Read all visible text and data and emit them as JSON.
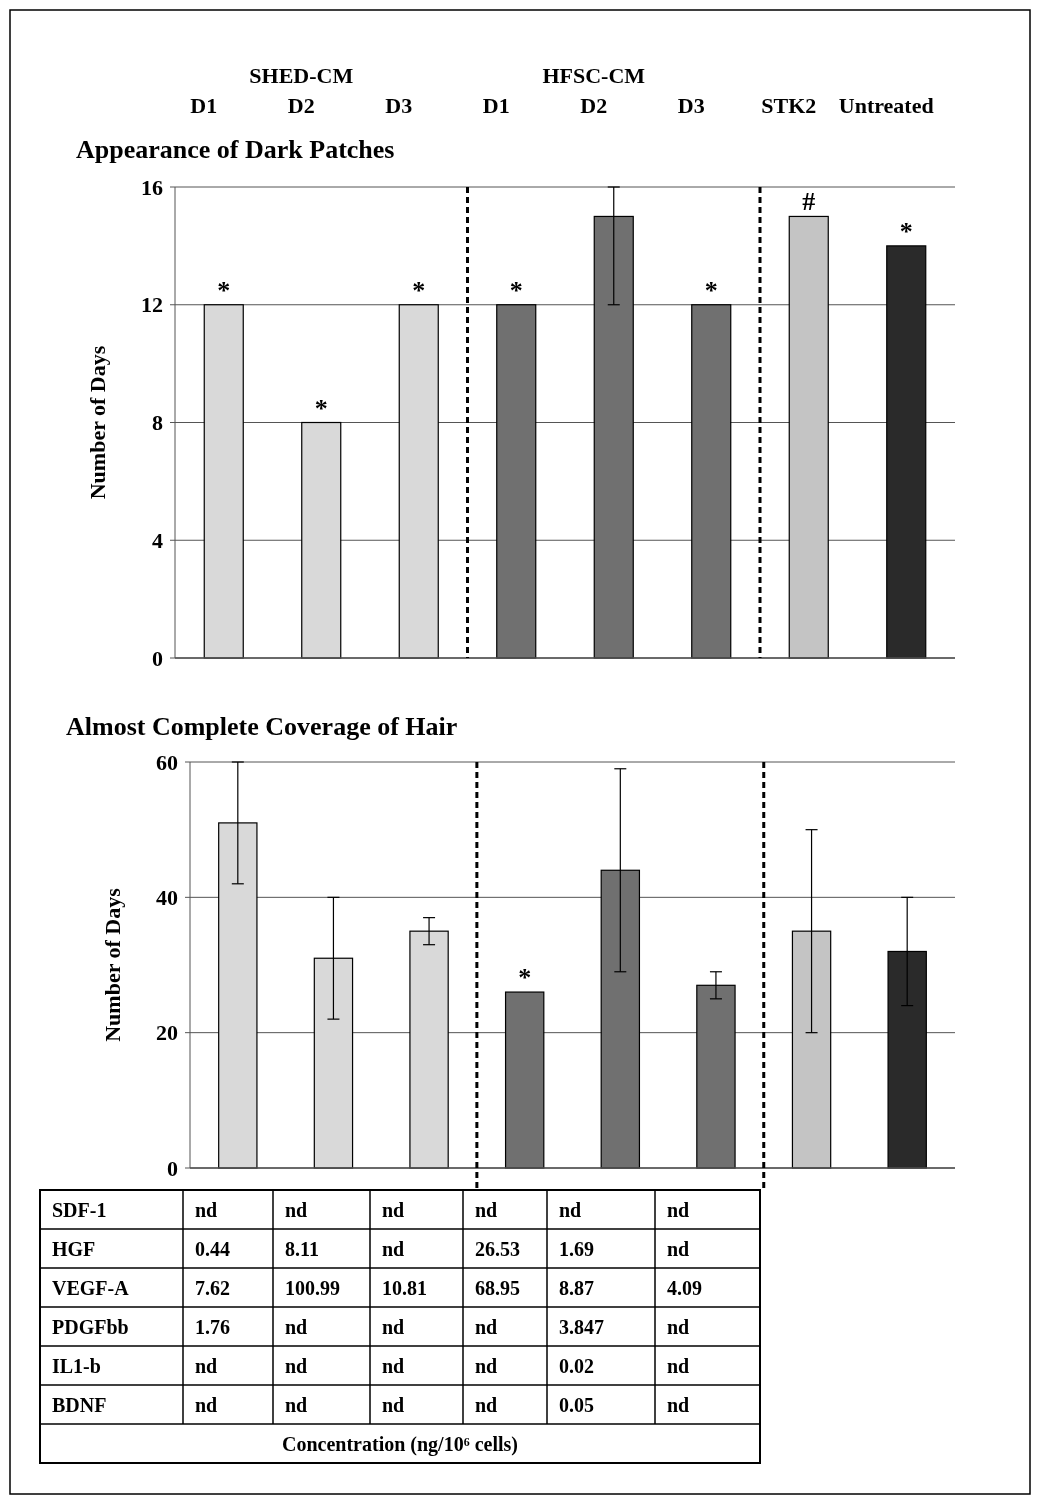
{
  "chart_data": [
    {
      "type": "bar",
      "title": "Appearance of Dark Patches",
      "ylabel": "Number of Days",
      "categories": [
        "D1",
        "D2",
        "D3",
        "D1",
        "D2",
        "D3",
        "STK2",
        "Untreated"
      ],
      "annotations": [
        "SHED-CM",
        "HFSC-CM"
      ],
      "values": [
        12,
        8,
        12,
        12,
        15,
        12,
        15,
        14
      ],
      "errors": [
        null,
        null,
        null,
        null,
        [
          12,
          16
        ],
        null,
        null,
        null
      ],
      "value_labels": [
        "*",
        "*",
        "*",
        "*",
        null,
        "*",
        "#",
        "*"
      ],
      "colors": [
        "#d9d9d9",
        "#d9d9d9",
        "#d9d9d9",
        "#707070",
        "#707070",
        "#707070",
        "#c4c4c4",
        "#2a2a2a"
      ],
      "ylim": [
        0,
        16
      ],
      "yticks": [
        0,
        4,
        8,
        12,
        16
      ],
      "grid": "y"
    },
    {
      "type": "bar",
      "title": "Almost Complete Coverage of Hair",
      "ylabel": "Number of Days",
      "categories": [
        null,
        null,
        null,
        null,
        null,
        null,
        null,
        null
      ],
      "values": [
        51,
        31,
        35,
        26,
        44,
        27,
        35,
        32
      ],
      "errors": [
        [
          42,
          60
        ],
        [
          22,
          40
        ],
        [
          33,
          37
        ],
        null,
        [
          29,
          59
        ],
        [
          25,
          29
        ],
        [
          20,
          50
        ],
        [
          24,
          40
        ]
      ],
      "value_labels": [
        null,
        null,
        null,
        "*",
        null,
        null,
        null,
        null
      ],
      "colors": [
        "#d9d9d9",
        "#d9d9d9",
        "#d9d9d9",
        "#707070",
        "#707070",
        "#707070",
        "#c4c4c4",
        "#2a2a2a"
      ],
      "ylim": [
        0,
        60
      ],
      "yticks": [
        0,
        20,
        40,
        60
      ],
      "grid": "y"
    },
    {
      "type": "other",
      "xlabel": "Concentration (ng/10⁶ cells)",
      "y_categories": [
        "SDF-1",
        "HGF",
        "VEGF-A",
        "PDGFbb",
        "IL1-b",
        "BDNF"
      ],
      "cell_labels": [
        [
          "nd",
          "nd",
          "nd",
          "nd",
          "nd",
          "nd"
        ],
        [
          "0.44",
          "8.11",
          "nd",
          "26.53",
          "1.69",
          "nd"
        ],
        [
          "7.62",
          "100.99",
          "10.81",
          "68.95",
          "8.87",
          "4.09"
        ],
        [
          "1.76",
          "nd",
          "nd",
          "nd",
          "3.847",
          "nd"
        ],
        [
          "nd",
          "nd",
          "nd",
          "nd",
          "0.02",
          "nd"
        ],
        [
          "nd",
          "nd",
          "nd",
          "nd",
          "0.05",
          "nd"
        ]
      ]
    }
  ]
}
